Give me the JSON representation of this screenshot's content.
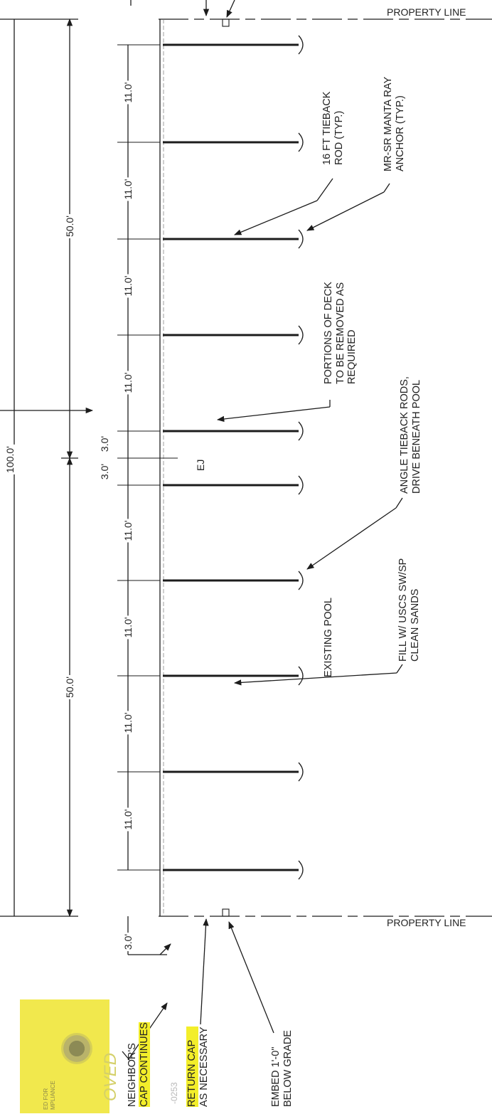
{
  "property_line_top": "PROPERTY LINE",
  "property_line_bottom": "PROPERTY LINE",
  "overall_dim": "100.0'",
  "half_dim_top": "50.0'",
  "half_dim_bottom": "50.0'",
  "spacing_dims": [
    "11.0'",
    "11.0'",
    "11.0'",
    "11.0'",
    "3.0'",
    "3.0'",
    "11.0'",
    "11.0'",
    "11.0'",
    "11.0'"
  ],
  "end_dim": "3.0'",
  "ej_label": "EJ",
  "notes": {
    "tieback_rod": [
      "16 FT TIEBACK",
      "ROD (TYP.)"
    ],
    "manta_ray": [
      "MR-SR MANTA RAY",
      "ANCHOR (TYP.)"
    ],
    "deck": [
      "PORTIONS OF DECK",
      "TO BE REMOVED AS",
      "REQUIRED"
    ],
    "angle_rods": [
      "ANGLE TIEBACK RODS,",
      "DRIVE BENEATH POOL"
    ],
    "existing_pool": "EXISTING POOL",
    "fill": [
      "FILL W/ USCS SW/SP",
      "CLEAN SANDS"
    ],
    "neighbor": [
      "NEIGHBOR'S",
      "CAP CONTINUES"
    ],
    "return_cap": [
      "RETURN CAP",
      "AS NECESSARY"
    ],
    "embed": [
      "EMBED 1'-0\"",
      "BELOW GRADE"
    ]
  },
  "stamp": {
    "word": "OVED",
    "small": [
      "ED FOR",
      "MPLIANCE"
    ],
    "faint_text": "-0253"
  },
  "colors": {
    "ink": "#1c1c1c",
    "highlight": "#f3ee2a",
    "stamp": "#efe63a"
  }
}
